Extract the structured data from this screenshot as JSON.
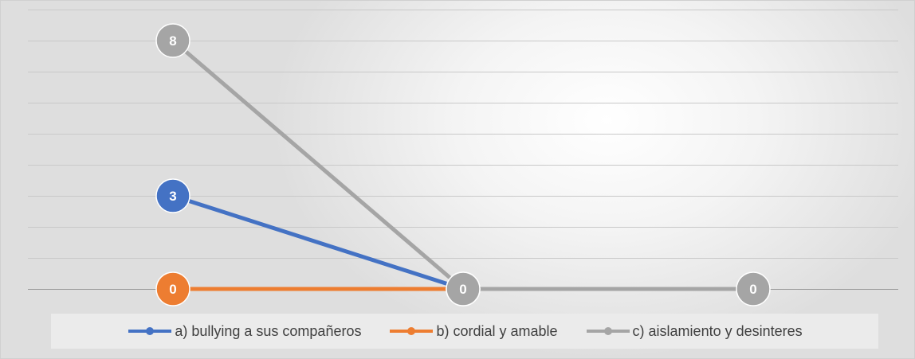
{
  "chart_data": {
    "type": "line",
    "categories": [
      "",
      "",
      ""
    ],
    "ylim": [
      0,
      9
    ],
    "grid": true,
    "legend_position": "bottom",
    "data_labels": true,
    "series": [
      {
        "name": "a) bullying a sus compañeros",
        "values": [
          3,
          0,
          null
        ],
        "color": "#4472C4"
      },
      {
        "name": "b) cordial y amable",
        "values": [
          0,
          0,
          null
        ],
        "color": "#ED7D31"
      },
      {
        "name": "c) aislamiento y desinteres",
        "values": [
          8,
          0,
          0
        ],
        "color": "#A5A5A5"
      }
    ]
  }
}
